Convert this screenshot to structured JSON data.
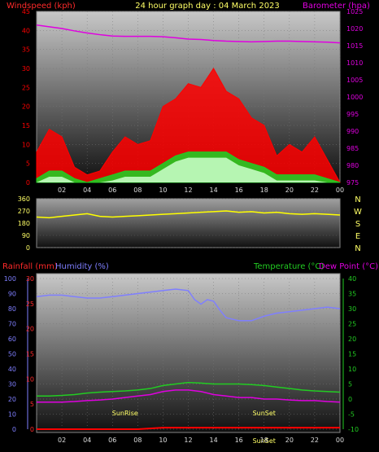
{
  "header": {
    "title": "24 hour graph day : 04 March 2023",
    "left_label": "Windspeed (kph)",
    "right_label": "Barometer (hpa)"
  },
  "colors": {
    "wind": "#ff0000",
    "gust_mid": "#22cc22",
    "wind_low": "#ccffcc",
    "barometer": "#e000e0",
    "direction": "#ffff00",
    "rain_axis": "#ff2a2a",
    "humidity": "#7f7fff",
    "temperature": "#22cc22",
    "dewpoint": "#e000e0",
    "rainfall": "#ff0000",
    "sun_text": "#ffff66"
  },
  "chart_data": [
    {
      "type": "line",
      "name": "wind-barometer",
      "x_ticks": [
        "02",
        "04",
        "06",
        "08",
        "10",
        "12",
        "14",
        "16",
        "18",
        "20",
        "22",
        "00"
      ],
      "y_left_ticks": [
        0,
        5,
        10,
        15,
        20,
        25,
        30,
        35,
        40,
        45
      ],
      "y_right_ticks": [
        975,
        980,
        985,
        990,
        995,
        1000,
        1005,
        1010,
        1015,
        1020,
        1025
      ],
      "ylim_left": [
        0,
        45
      ],
      "ylim_right": [
        975,
        1025
      ],
      "xlim": [
        0,
        24
      ],
      "series": [
        {
          "role": "barometer",
          "axis": "right",
          "x": [
            0,
            1,
            2,
            3,
            4,
            5,
            6,
            7,
            8,
            9,
            10,
            11,
            12,
            13,
            14,
            15,
            16,
            17,
            18,
            19,
            20,
            21,
            22,
            23,
            24
          ],
          "values": [
            1021,
            1020.5,
            1020,
            1019.3,
            1018.7,
            1018.2,
            1017.8,
            1017.7,
            1017.7,
            1017.7,
            1017.6,
            1017.3,
            1016.9,
            1016.8,
            1016.5,
            1016.3,
            1016.2,
            1016.1,
            1016.2,
            1016.3,
            1016.3,
            1016.2,
            1016.1,
            1016.0,
            1015.8
          ]
        },
        {
          "role": "gust",
          "axis": "left",
          "x": [
            0,
            1,
            2,
            3,
            4,
            5,
            6,
            7,
            8,
            9,
            10,
            11,
            12,
            13,
            14,
            15,
            16,
            17,
            18,
            19,
            20,
            21,
            22,
            23,
            24
          ],
          "values": [
            8,
            14,
            12,
            4,
            2,
            3,
            8,
            12,
            10,
            11,
            20,
            22,
            26,
            25,
            30,
            24,
            22,
            17,
            15,
            7,
            10,
            8,
            12,
            6,
            0
          ]
        },
        {
          "role": "wind-average",
          "axis": "left",
          "x": [
            0,
            1,
            2,
            3,
            4,
            5,
            6,
            7,
            8,
            9,
            10,
            11,
            12,
            13,
            14,
            15,
            16,
            17,
            18,
            19,
            20,
            21,
            22,
            23,
            24
          ],
          "values": [
            1,
            3,
            3,
            1,
            0,
            1,
            2,
            3,
            3,
            3,
            5,
            7,
            8,
            8,
            8,
            8,
            6,
            5,
            4,
            2,
            2,
            2,
            2,
            1,
            0
          ]
        }
      ]
    },
    {
      "type": "scatter",
      "name": "wind-direction",
      "y_ticks": [
        0,
        90,
        180,
        270,
        360
      ],
      "ylim": [
        0,
        360
      ],
      "xlim": [
        0,
        24
      ],
      "compass_labels": [
        "N",
        "W",
        "S",
        "E",
        "N"
      ],
      "x": [
        0,
        1,
        2,
        3,
        4,
        5,
        6,
        7,
        8,
        9,
        10,
        11,
        12,
        13,
        14,
        15,
        16,
        17,
        18,
        19,
        20,
        21,
        22,
        23,
        24
      ],
      "values": [
        225,
        220,
        230,
        240,
        250,
        230,
        225,
        230,
        235,
        240,
        245,
        250,
        255,
        260,
        265,
        270,
        260,
        265,
        255,
        260,
        250,
        245,
        250,
        245,
        240
      ]
    },
    {
      "type": "line",
      "name": "rain-humidity-temp",
      "labels": {
        "rainfall": "Rainfall (mm)",
        "humidity": "Humidity (%)",
        "temperature": "Temperature (°C)",
        "dewpoint": "Dew Point (°C)"
      },
      "x_ticks": [
        "02",
        "04",
        "06",
        "08",
        "10",
        "12",
        "14",
        "16",
        "18",
        "20",
        "22",
        "00"
      ],
      "y_rain_ticks": [
        0,
        5,
        10,
        15,
        20,
        25,
        30
      ],
      "y_hum_ticks": [
        0,
        10,
        20,
        30,
        40,
        50,
        60,
        70,
        80,
        90,
        100
      ],
      "y_temp_ticks": [
        -10,
        -5,
        0,
        5,
        10,
        15,
        20,
        25,
        30,
        35,
        40
      ],
      "ylim_rain": [
        0,
        30
      ],
      "ylim_hum": [
        0,
        100
      ],
      "ylim_temp": [
        -10,
        40
      ],
      "xlim": [
        0,
        24
      ],
      "annotations": [
        "SunRise",
        "SunSet",
        "SunSet"
      ],
      "series": [
        {
          "role": "humidity",
          "axis": "hum",
          "x": [
            0,
            1,
            2,
            3,
            4,
            5,
            6,
            7,
            8,
            9,
            10,
            11,
            12,
            12.5,
            13,
            13.5,
            14,
            14.5,
            15,
            16,
            17,
            18,
            19,
            20,
            21,
            22,
            23,
            24
          ],
          "values": [
            88,
            89,
            89,
            88,
            87,
            87,
            88,
            89,
            90,
            91,
            92,
            93,
            92,
            86,
            83,
            86,
            85,
            79,
            74,
            72,
            72,
            75,
            77,
            78,
            79,
            80,
            81,
            80
          ]
        },
        {
          "role": "temperature",
          "axis": "temp",
          "x": [
            0,
            1,
            2,
            3,
            4,
            5,
            6,
            7,
            8,
            9,
            10,
            11,
            12,
            13,
            14,
            15,
            16,
            17,
            18,
            19,
            20,
            21,
            22,
            23,
            24
          ],
          "values": [
            1,
            1,
            1.2,
            1.5,
            2,
            2.3,
            2.5,
            2.7,
            3,
            3.5,
            4.5,
            5,
            5.5,
            5.3,
            5,
            5,
            5,
            4.8,
            4.5,
            4,
            3.5,
            3,
            2.7,
            2.5,
            2.3
          ]
        },
        {
          "role": "dewpoint",
          "axis": "temp",
          "x": [
            0,
            1,
            2,
            3,
            4,
            5,
            6,
            7,
            8,
            9,
            10,
            11,
            12,
            13,
            14,
            15,
            16,
            17,
            18,
            19,
            20,
            21,
            22,
            23,
            24
          ],
          "values": [
            -1,
            -1,
            -1,
            -0.8,
            -0.5,
            -0.3,
            0,
            0.5,
            1,
            1.5,
            2.5,
            3,
            3,
            2.5,
            1.5,
            1,
            0.5,
            0.5,
            0,
            0,
            -0.3,
            -0.5,
            -0.5,
            -0.8,
            -1
          ]
        },
        {
          "role": "rainfall",
          "axis": "rain",
          "x": [
            0,
            6,
            8,
            10,
            12,
            14,
            16,
            18,
            20,
            22,
            24
          ],
          "values": [
            0,
            0,
            0,
            0.3,
            0.3,
            0.3,
            0.3,
            0.3,
            0.3,
            0.3,
            0.3
          ]
        }
      ]
    }
  ]
}
